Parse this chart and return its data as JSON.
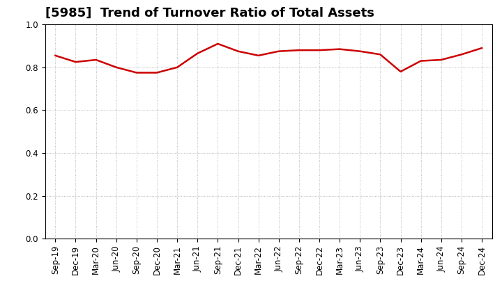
{
  "title": "[5985]  Trend of Turnover Ratio of Total Assets",
  "x_labels": [
    "Sep-19",
    "Dec-19",
    "Mar-20",
    "Jun-20",
    "Sep-20",
    "Dec-20",
    "Mar-21",
    "Jun-21",
    "Sep-21",
    "Dec-21",
    "Mar-22",
    "Jun-22",
    "Sep-22",
    "Dec-22",
    "Mar-23",
    "Jun-23",
    "Sep-23",
    "Dec-23",
    "Mar-24",
    "Jun-24",
    "Sep-24",
    "Dec-24"
  ],
  "values": [
    0.855,
    0.825,
    0.835,
    0.8,
    0.775,
    0.775,
    0.8,
    0.865,
    0.91,
    0.875,
    0.855,
    0.875,
    0.88,
    0.88,
    0.885,
    0.875,
    0.86,
    0.78,
    0.83,
    0.835,
    0.86,
    0.89
  ],
  "line_color": "#cc0000",
  "line_width": 1.8,
  "ylim": [
    0.0,
    1.0
  ],
  "yticks": [
    0.0,
    0.2,
    0.4,
    0.6,
    0.8,
    1.0
  ],
  "background_color": "#ffffff",
  "grid_color": "#aaaaaa",
  "title_fontsize": 13,
  "tick_fontsize": 8.5
}
